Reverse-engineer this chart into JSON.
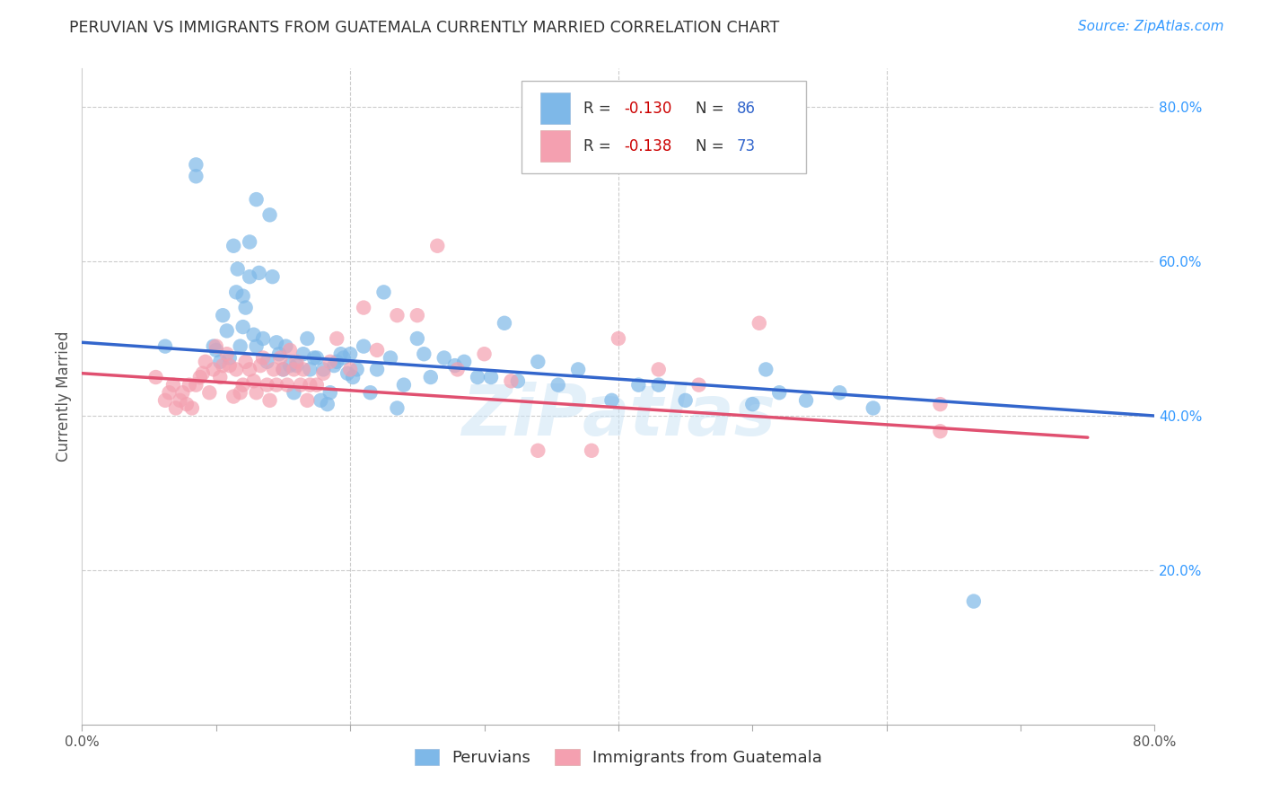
{
  "title": "PERUVIAN VS IMMIGRANTS FROM GUATEMALA CURRENTLY MARRIED CORRELATION CHART",
  "source": "Source: ZipAtlas.com",
  "ylabel": "Currently Married",
  "xlim": [
    0.0,
    0.8
  ],
  "ylim": [
    0.0,
    0.85
  ],
  "x_ticks": [
    0.0,
    0.1,
    0.2,
    0.3,
    0.4,
    0.5,
    0.6,
    0.7,
    0.8
  ],
  "y_ticks_right": [
    0.2,
    0.4,
    0.6,
    0.8
  ],
  "y_tick_labels_right": [
    "20.0%",
    "40.0%",
    "60.0%",
    "80.0%"
  ],
  "legend_r1": "-0.130",
  "legend_n1": "86",
  "legend_r2": "-0.138",
  "legend_n2": "73",
  "series1_label": "Peruvians",
  "series2_label": "Immigrants from Guatemala",
  "color1": "#7EB8E8",
  "color2": "#F4A0B0",
  "trend1_color": "#3366CC",
  "trend2_color": "#E05070",
  "watermark": "ZiPatlas",
  "blue_dots_x": [
    0.062,
    0.085,
    0.085,
    0.098,
    0.1,
    0.103,
    0.105,
    0.108,
    0.11,
    0.113,
    0.115,
    0.116,
    0.118,
    0.12,
    0.12,
    0.122,
    0.125,
    0.125,
    0.128,
    0.13,
    0.13,
    0.132,
    0.135,
    0.138,
    0.14,
    0.142,
    0.145,
    0.147,
    0.15,
    0.152,
    0.155,
    0.158,
    0.16,
    0.165,
    0.168,
    0.17,
    0.173,
    0.175,
    0.178,
    0.18,
    0.183,
    0.185,
    0.188,
    0.19,
    0.193,
    0.195,
    0.198,
    0.2,
    0.202,
    0.205,
    0.21,
    0.215,
    0.22,
    0.225,
    0.23,
    0.235,
    0.24,
    0.25,
    0.255,
    0.26,
    0.27,
    0.278,
    0.285,
    0.295,
    0.305,
    0.315,
    0.325,
    0.34,
    0.355,
    0.37,
    0.395,
    0.415,
    0.43,
    0.45,
    0.5,
    0.51,
    0.52,
    0.54,
    0.565,
    0.59,
    0.665
  ],
  "blue_dots_y": [
    0.49,
    0.725,
    0.71,
    0.49,
    0.485,
    0.47,
    0.53,
    0.51,
    0.475,
    0.62,
    0.56,
    0.59,
    0.49,
    0.515,
    0.555,
    0.54,
    0.625,
    0.58,
    0.505,
    0.49,
    0.68,
    0.585,
    0.5,
    0.47,
    0.66,
    0.58,
    0.495,
    0.48,
    0.46,
    0.49,
    0.465,
    0.43,
    0.465,
    0.48,
    0.5,
    0.46,
    0.475,
    0.475,
    0.42,
    0.46,
    0.415,
    0.43,
    0.465,
    0.47,
    0.48,
    0.475,
    0.455,
    0.48,
    0.45,
    0.46,
    0.49,
    0.43,
    0.46,
    0.56,
    0.475,
    0.41,
    0.44,
    0.5,
    0.48,
    0.45,
    0.475,
    0.465,
    0.47,
    0.45,
    0.45,
    0.52,
    0.445,
    0.47,
    0.44,
    0.46,
    0.42,
    0.44,
    0.44,
    0.42,
    0.415,
    0.46,
    0.43,
    0.42,
    0.43,
    0.41,
    0.16
  ],
  "pink_dots_x": [
    0.055,
    0.062,
    0.065,
    0.068,
    0.07,
    0.073,
    0.075,
    0.078,
    0.08,
    0.082,
    0.085,
    0.088,
    0.09,
    0.092,
    0.095,
    0.098,
    0.1,
    0.103,
    0.105,
    0.108,
    0.11,
    0.113,
    0.115,
    0.118,
    0.12,
    0.122,
    0.125,
    0.128,
    0.13,
    0.133,
    0.135,
    0.138,
    0.14,
    0.143,
    0.145,
    0.148,
    0.15,
    0.153,
    0.155,
    0.158,
    0.16,
    0.163,
    0.165,
    0.168,
    0.17,
    0.175,
    0.18,
    0.185,
    0.19,
    0.2,
    0.21,
    0.22,
    0.235,
    0.25,
    0.265,
    0.28,
    0.3,
    0.32,
    0.34,
    0.38,
    0.4,
    0.43,
    0.46,
    0.505,
    0.64,
    0.64
  ],
  "pink_dots_y": [
    0.45,
    0.42,
    0.43,
    0.44,
    0.41,
    0.42,
    0.43,
    0.415,
    0.44,
    0.41,
    0.44,
    0.45,
    0.455,
    0.47,
    0.43,
    0.46,
    0.49,
    0.45,
    0.465,
    0.48,
    0.465,
    0.425,
    0.46,
    0.43,
    0.44,
    0.47,
    0.46,
    0.445,
    0.43,
    0.465,
    0.475,
    0.44,
    0.42,
    0.46,
    0.44,
    0.475,
    0.46,
    0.44,
    0.485,
    0.46,
    0.47,
    0.44,
    0.46,
    0.42,
    0.44,
    0.44,
    0.455,
    0.47,
    0.5,
    0.46,
    0.54,
    0.485,
    0.53,
    0.53,
    0.62,
    0.46,
    0.48,
    0.445,
    0.355,
    0.355,
    0.5,
    0.46,
    0.44,
    0.52,
    0.415,
    0.38
  ],
  "trend1_x_start": 0.0,
  "trend1_x_end": 0.8,
  "trend1_y_start": 0.495,
  "trend1_y_end": 0.4,
  "trend2_x_start": 0.0,
  "trend2_x_end": 0.75,
  "trend2_y_start": 0.455,
  "trend2_y_end": 0.372
}
